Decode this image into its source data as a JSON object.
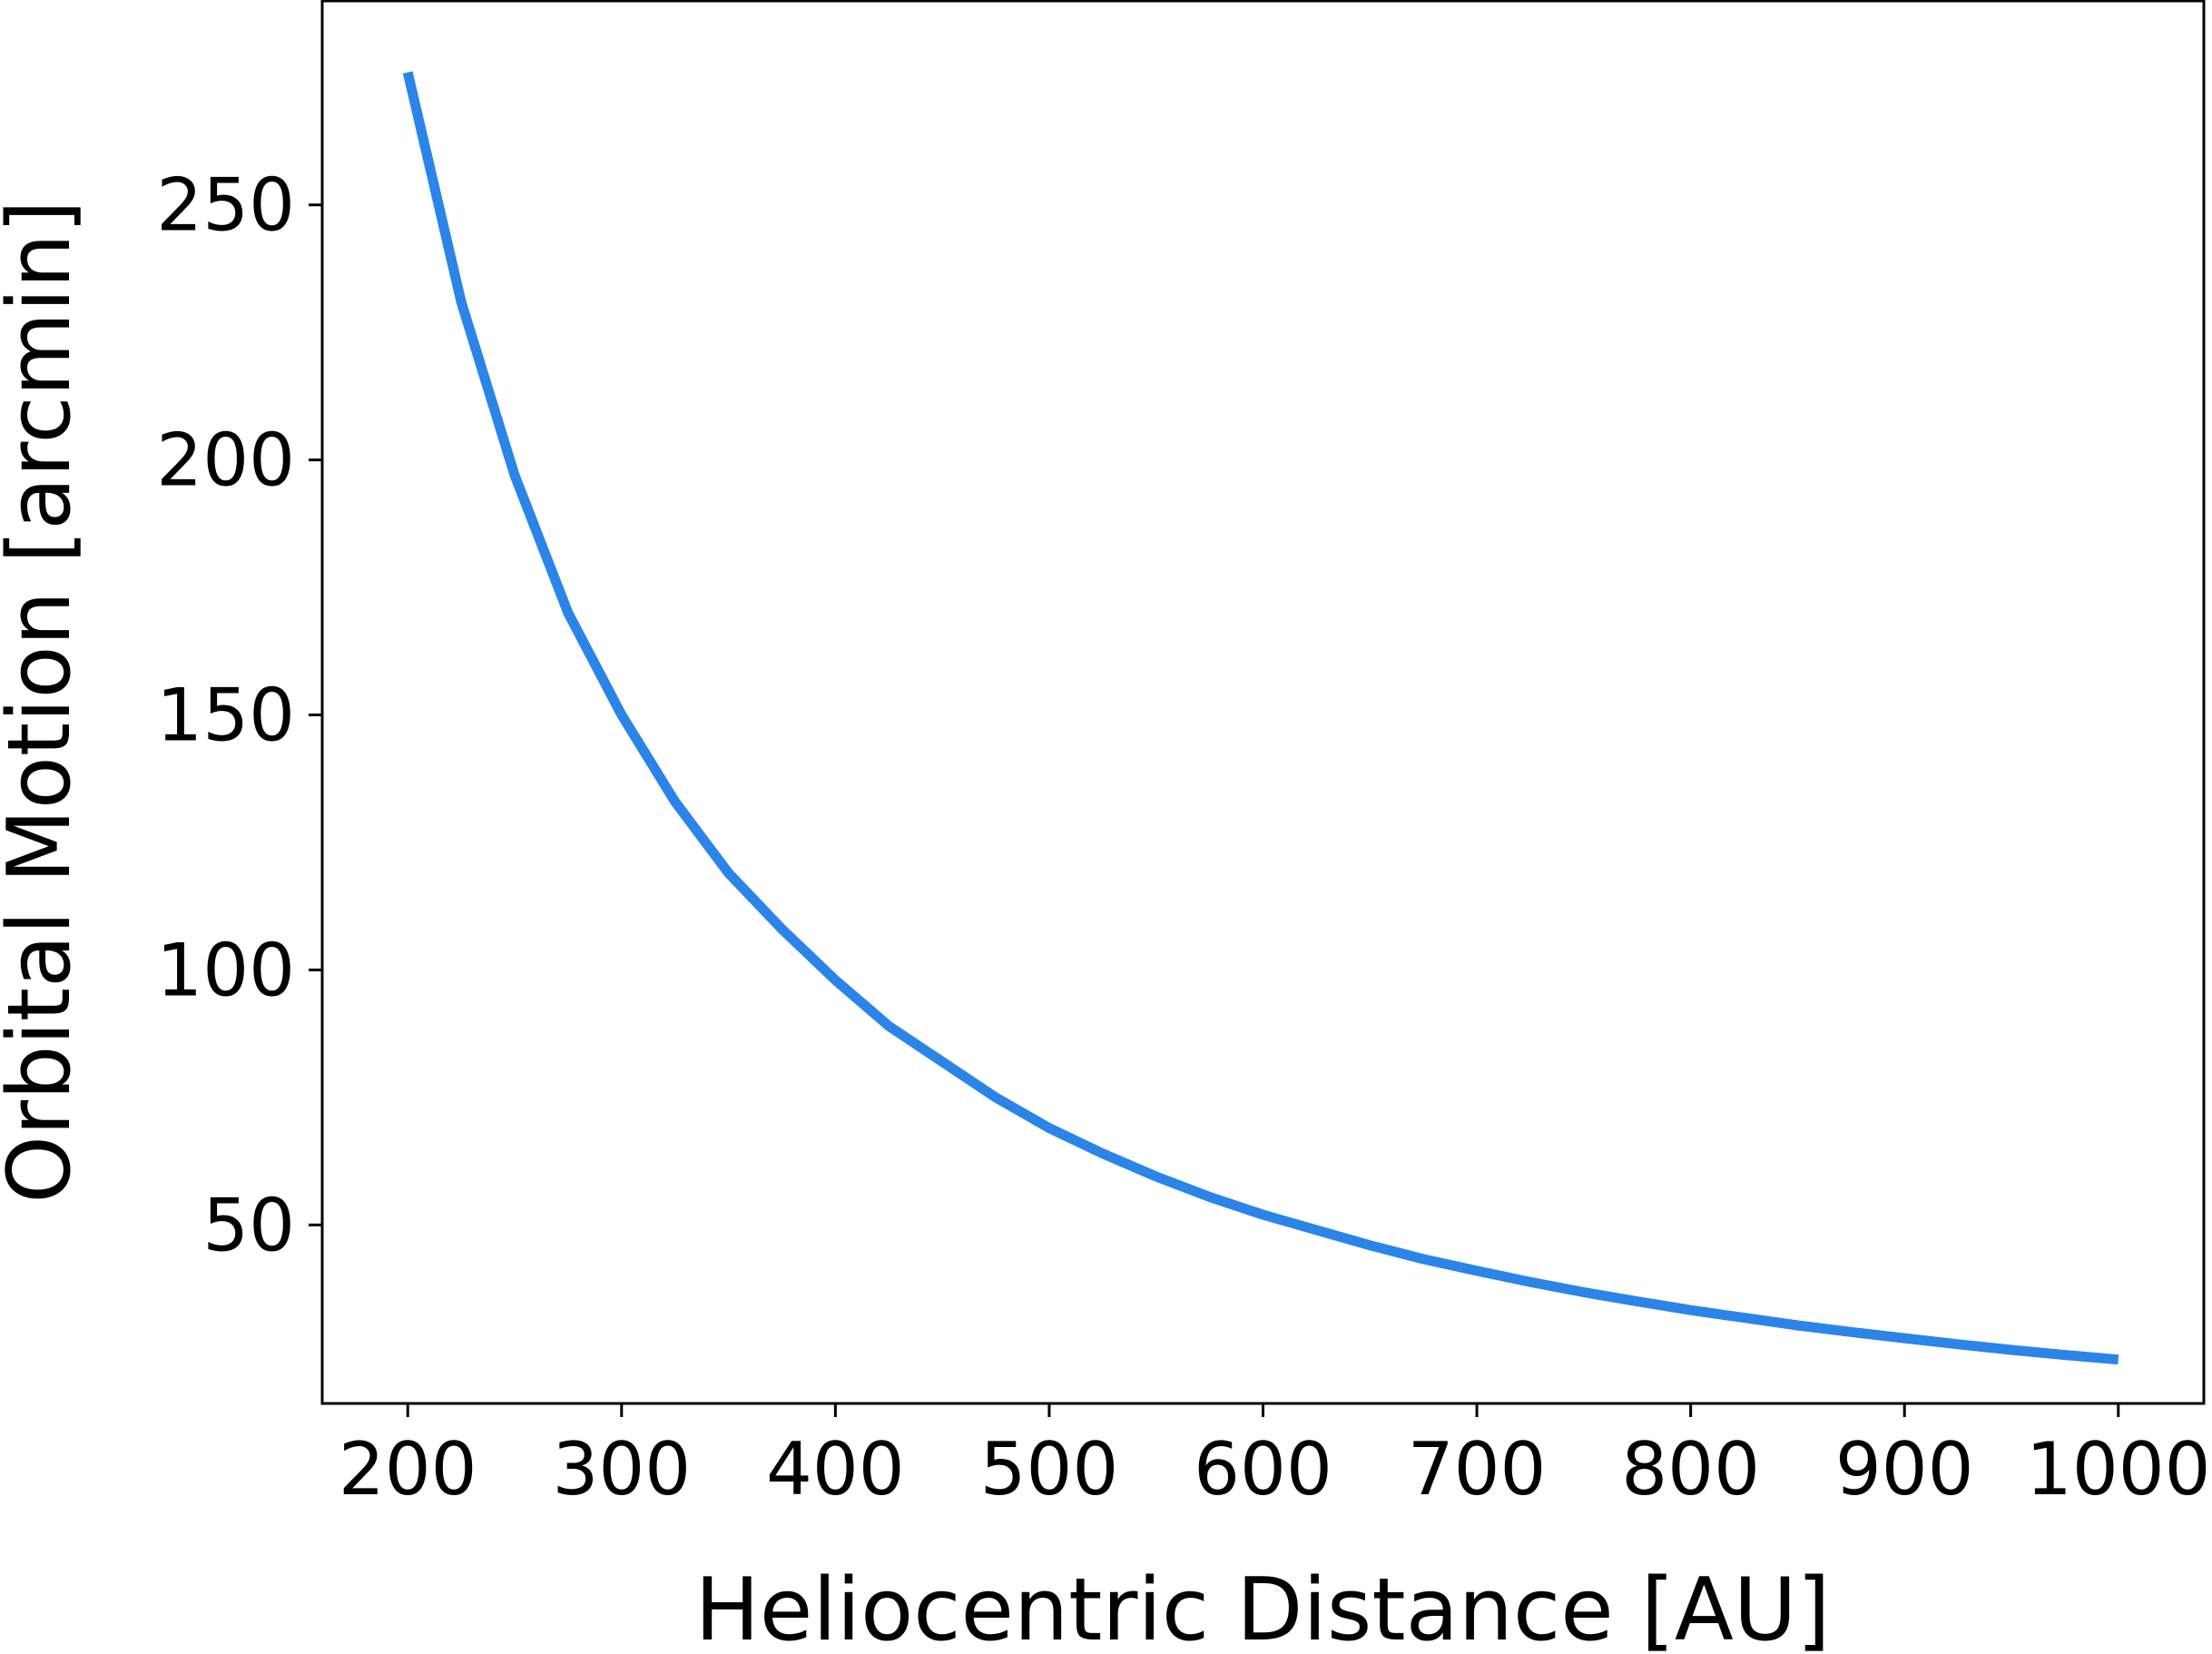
{
  "chart_data": {
    "type": "line",
    "title": "",
    "xlabel": "Heliocentric Distance [AU]",
    "ylabel": "Orbital Motion [arcmin]",
    "xlim": [
      160,
      1040
    ],
    "ylim": [
      15,
      290
    ],
    "xticks": [
      200,
      300,
      400,
      500,
      600,
      700,
      800,
      900,
      1000
    ],
    "yticks": [
      50,
      100,
      150,
      200,
      250
    ],
    "grid": false,
    "legend": "none",
    "series": [
      {
        "color": "#2b84e8",
        "x": [
          200,
          225,
          250,
          275,
          300,
          325,
          350,
          375,
          400,
          425,
          450,
          475,
          500,
          525,
          550,
          575,
          600,
          625,
          650,
          675,
          700,
          725,
          750,
          775,
          800,
          825,
          850,
          875,
          900,
          925,
          950,
          975,
          1000
        ],
        "y": [
          276,
          231,
          197,
          170,
          150,
          133,
          119,
          108,
          98,
          89,
          82,
          75,
          69,
          64,
          59.5,
          55.5,
          52,
          49,
          46,
          43.3,
          41,
          38.8,
          36.8,
          35,
          33.3,
          31.8,
          30.3,
          29,
          27.8,
          26.6,
          25.5,
          24.5,
          23.6
        ]
      }
    ]
  }
}
